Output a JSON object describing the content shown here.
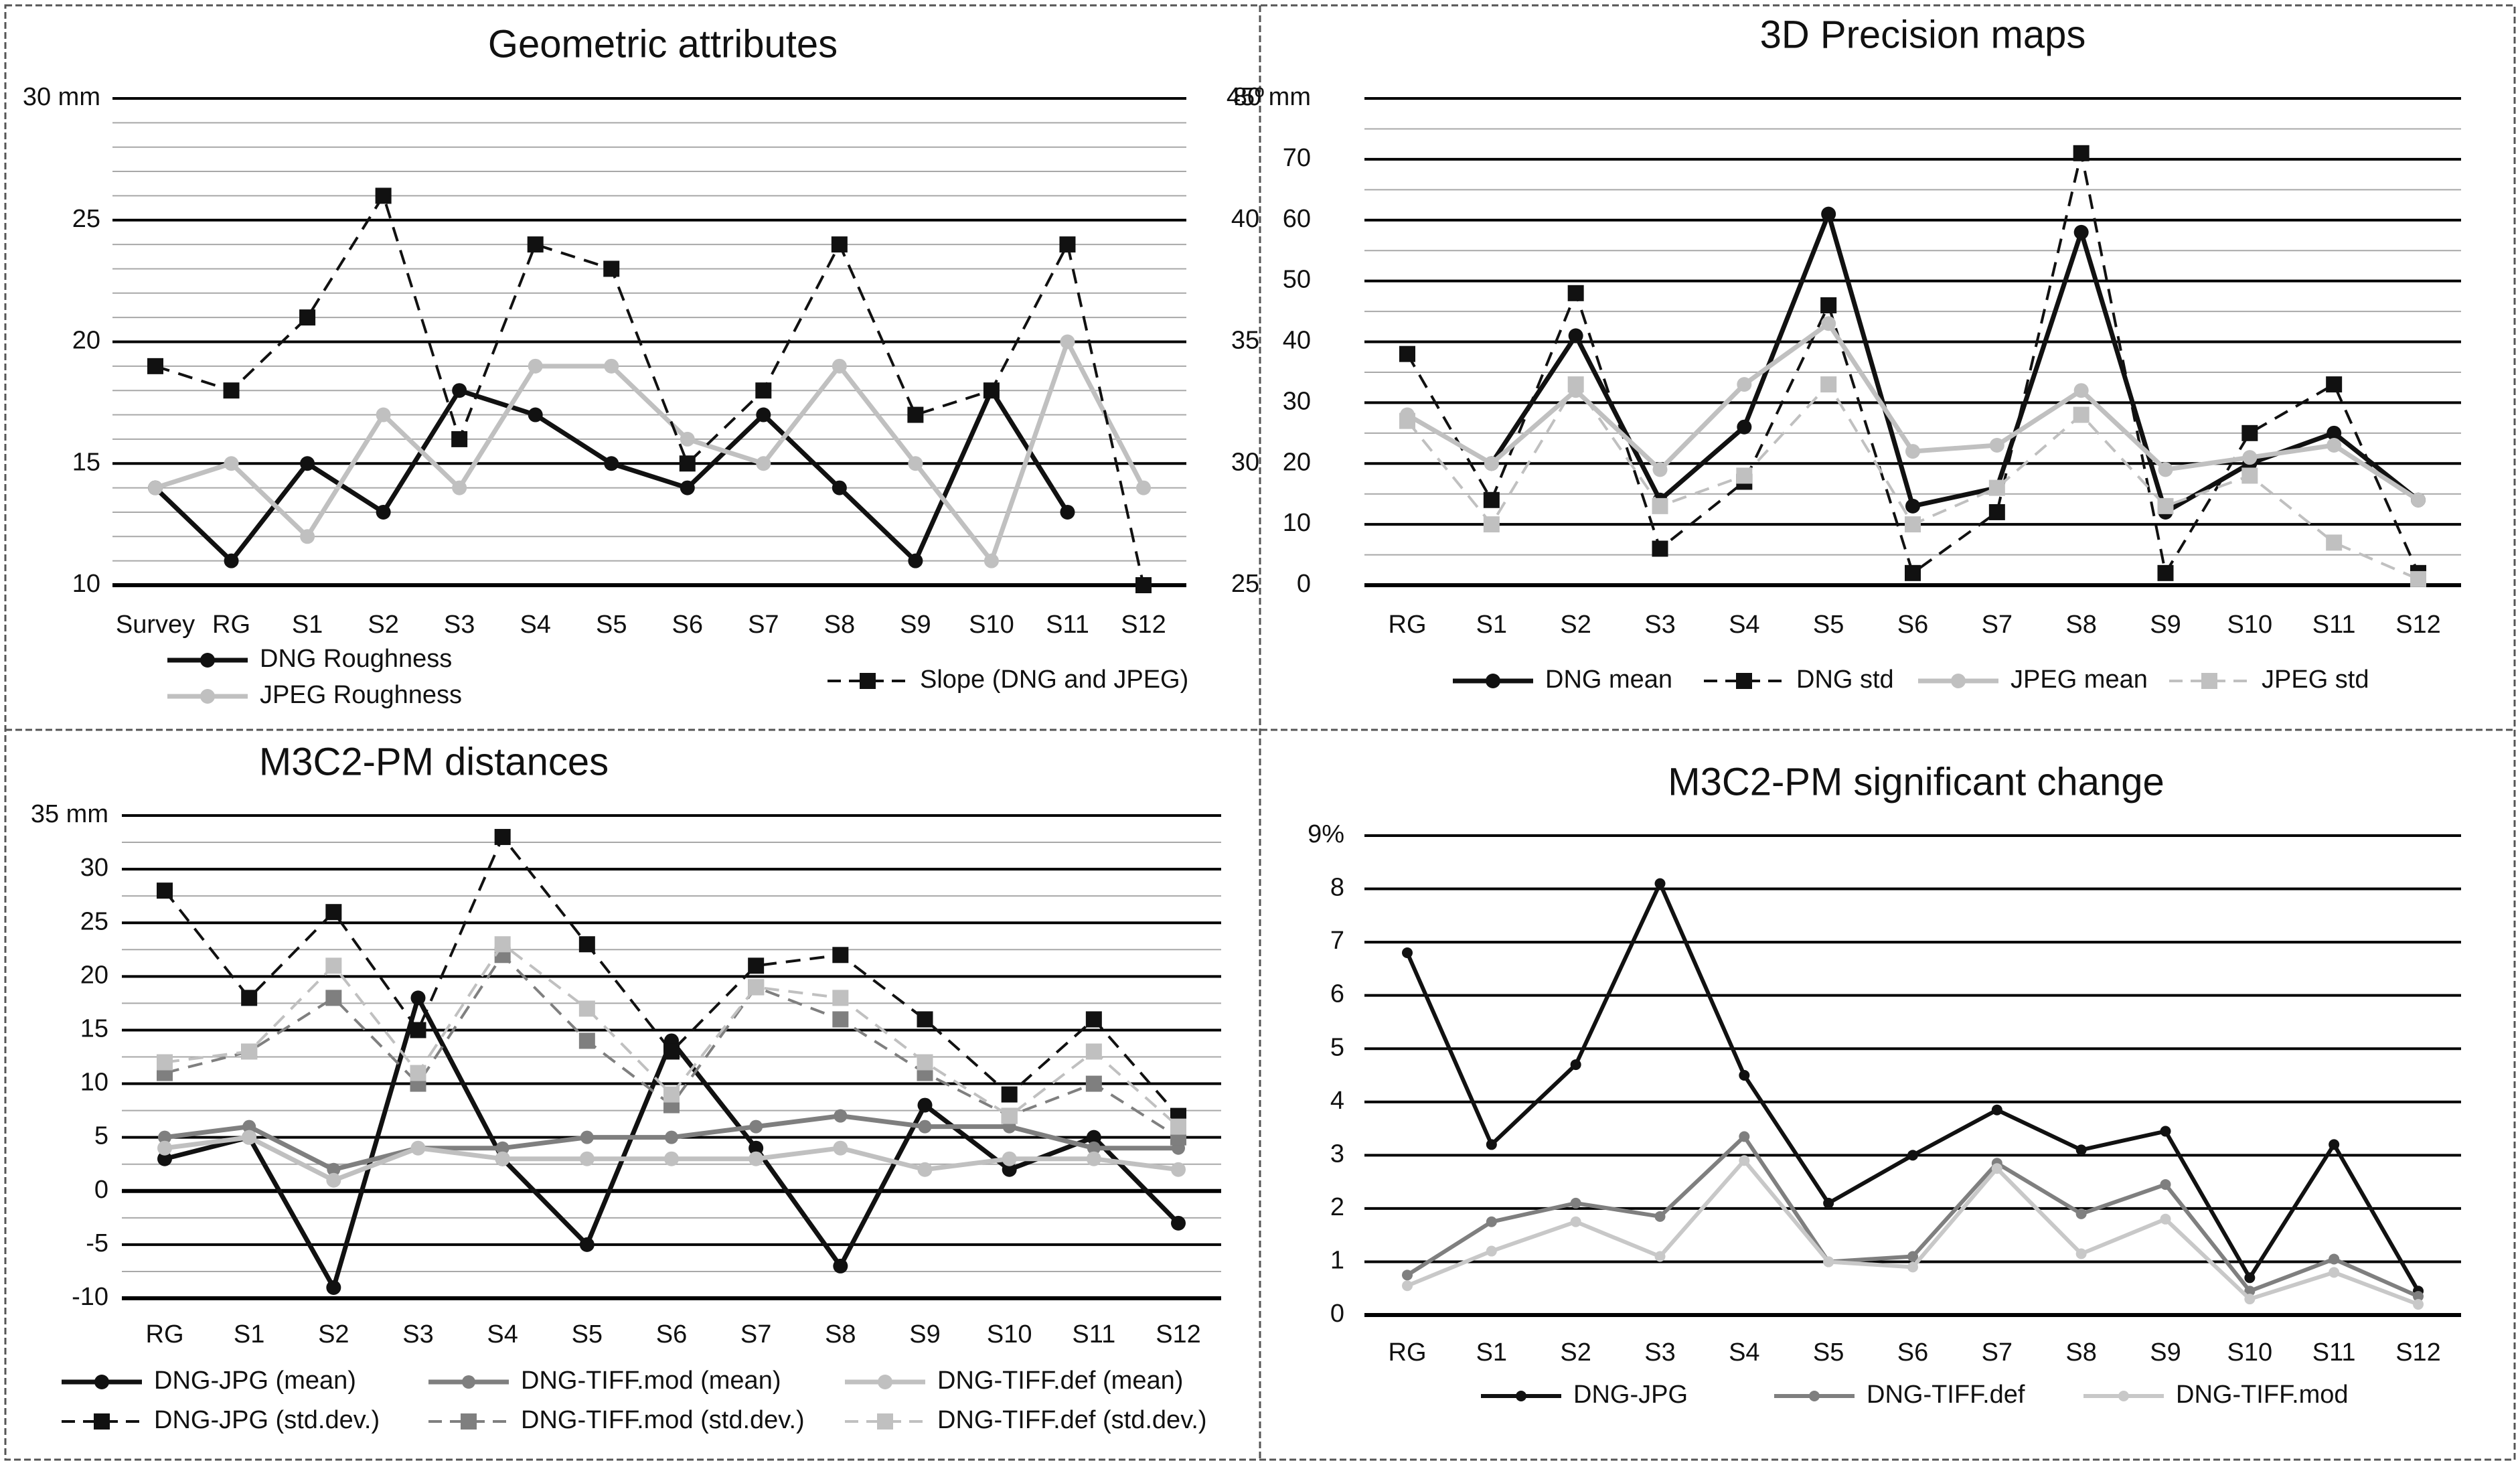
{
  "chart_data": [
    {
      "type": "line",
      "title": "Geometric attributes",
      "categories": [
        "Survey",
        "RG",
        "S1",
        "S2",
        "S3",
        "S4",
        "S5",
        "S6",
        "S7",
        "S8",
        "S9",
        "S10",
        "S11",
        "S12"
      ],
      "y_ticks": [
        "30 mm",
        "25",
        "20",
        "15",
        "10"
      ],
      "y2_ticks": [
        "45º",
        "40",
        "35",
        "30",
        "25"
      ],
      "ylim": [
        10,
        30
      ],
      "y2lim": [
        25,
        45
      ],
      "grid": true,
      "legend": "bottom",
      "series": [
        {
          "name": "DNG Roughness",
          "axis": "left",
          "values": [
            14,
            11,
            15,
            13,
            18,
            17,
            15,
            14,
            17,
            14,
            11,
            18,
            13,
            null
          ]
        },
        {
          "name": "JPEG Roughness",
          "axis": "left",
          "values": [
            14,
            15,
            12,
            17,
            14,
            19,
            19,
            16,
            15,
            19,
            15,
            11,
            20,
            14
          ]
        },
        {
          "name": "Slope (DNG and JPEG)",
          "axis": "right",
          "values": [
            34,
            33,
            36,
            41,
            31,
            39,
            38,
            30,
            33,
            39,
            32,
            33,
            39,
            25
          ]
        }
      ]
    },
    {
      "type": "line",
      "title": "3D Precision maps",
      "categories": [
        "RG",
        "S1",
        "S2",
        "S3",
        "S4",
        "S5",
        "S6",
        "S7",
        "S8",
        "S9",
        "S10",
        "S11",
        "S12"
      ],
      "y_ticks": [
        "80 mm",
        "70",
        "60",
        "50",
        "40",
        "30",
        "20",
        "10",
        "0"
      ],
      "ylim": [
        0,
        80
      ],
      "grid": true,
      "legend": "bottom",
      "series": [
        {
          "name": "DNG mean",
          "values": [
            null,
            20,
            41,
            14,
            26,
            61,
            13,
            16,
            58,
            12,
            20,
            25,
            14
          ]
        },
        {
          "name": "DNG std",
          "values": [
            38,
            14,
            48,
            6,
            17,
            46,
            2,
            12,
            71,
            2,
            25,
            33,
            2
          ]
        },
        {
          "name": "JPEG mean",
          "values": [
            28,
            20,
            32,
            19,
            33,
            43,
            22,
            23,
            32,
            19,
            21,
            23,
            14
          ]
        },
        {
          "name": "JPEG std",
          "values": [
            27,
            10,
            33,
            13,
            18,
            33,
            10,
            16,
            28,
            13,
            18,
            7,
            1
          ]
        }
      ]
    },
    {
      "type": "line",
      "title": "M3C2-PM distances",
      "categories": [
        "RG",
        "S1",
        "S2",
        "S3",
        "S4",
        "S5",
        "S6",
        "S7",
        "S8",
        "S9",
        "S10",
        "S11",
        "S12"
      ],
      "y_ticks": [
        "35 mm",
        "30",
        "25",
        "20",
        "15",
        "10",
        "5",
        "0",
        "-5",
        "-10"
      ],
      "ylim": [
        -10,
        35
      ],
      "grid": true,
      "legend": "bottom",
      "series": [
        {
          "name": "DNG-JPG (mean)",
          "values": [
            3,
            5,
            -9,
            18,
            3,
            -5,
            14,
            4,
            -7,
            8,
            2,
            5,
            -3
          ]
        },
        {
          "name": "DNG-TIFF.mod (mean)",
          "values": [
            5,
            6,
            2,
            4,
            4,
            5,
            5,
            6,
            7,
            6,
            6,
            4,
            4
          ]
        },
        {
          "name": "DNG-TIFF.def (mean)",
          "values": [
            4,
            5,
            1,
            4,
            3,
            3,
            3,
            3,
            4,
            2,
            3,
            3,
            2
          ]
        },
        {
          "name": "DNG-JPG (std.dev.)",
          "values": [
            28,
            18,
            26,
            15,
            33,
            23,
            13,
            21,
            22,
            16,
            9,
            16,
            7
          ]
        },
        {
          "name": "DNG-TIFF.mod (std.dev.)",
          "values": [
            11,
            13,
            18,
            10,
            22,
            14,
            8,
            19,
            16,
            11,
            7,
            10,
            5
          ]
        },
        {
          "name": "DNG-TIFF.def  (std.dev.)",
          "values": [
            12,
            13,
            21,
            11,
            23,
            17,
            9,
            19,
            18,
            12,
            7,
            13,
            6
          ]
        }
      ]
    },
    {
      "type": "line",
      "title": "M3C2-PM significant change",
      "categories": [
        "RG",
        "S1",
        "S2",
        "S3",
        "S4",
        "S5",
        "S6",
        "S7",
        "S8",
        "S9",
        "S10",
        "S11",
        "S12"
      ],
      "y_ticks": [
        "9%",
        "8",
        "7",
        "6",
        "5",
        "4",
        "3",
        "2",
        "1",
        "0"
      ],
      "ylim": [
        0,
        9
      ],
      "grid": true,
      "legend": "bottom",
      "series": [
        {
          "name": "DNG-JPG",
          "values": [
            6.8,
            3.2,
            4.7,
            8.1,
            4.5,
            2.1,
            3.0,
            3.85,
            3.1,
            3.45,
            0.7,
            3.2,
            0.45
          ]
        },
        {
          "name": "DNG-TIFF.def",
          "values": [
            0.75,
            1.75,
            2.1,
            1.85,
            3.35,
            1.0,
            1.1,
            2.85,
            1.9,
            2.45,
            0.45,
            1.05,
            0.35
          ]
        },
        {
          "name": "DNG-TIFF.mod",
          "values": [
            0.55,
            1.2,
            1.75,
            1.1,
            2.9,
            1.0,
            0.9,
            2.75,
            1.15,
            1.8,
            0.3,
            0.8,
            0.2
          ]
        }
      ]
    }
  ]
}
